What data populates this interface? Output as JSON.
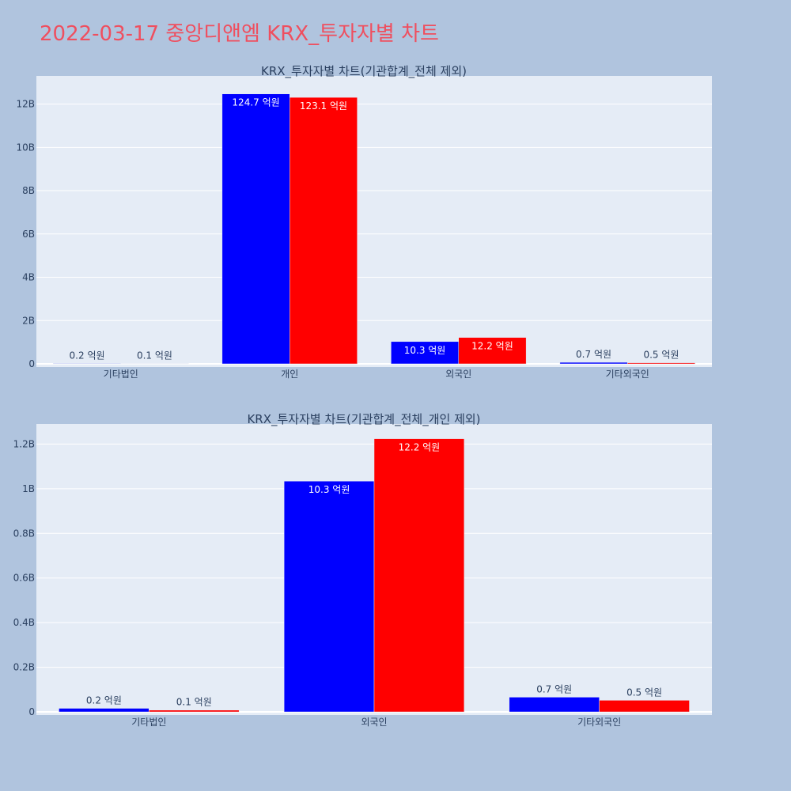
{
  "page": {
    "title": "2022-03-17 중앙디앤엠 KRX_투자자별 차트"
  },
  "colors": {
    "series_buy": "#0000ff",
    "series_sell": "#ff0000",
    "plot_bg": "#e5ecf6",
    "page_bg": "#b0c4de",
    "title": "#ef4f5f"
  },
  "chart_data": [
    {
      "type": "bar",
      "title": "KRX_투자자별 차트(기관합계_전체 제외)",
      "categories": [
        "기타법인",
        "개인",
        "외국인",
        "기타외국인"
      ],
      "series": [
        {
          "color": "#0000ff",
          "values": [
            20000000,
            12470000000,
            1030000000,
            70000000
          ],
          "labels": [
            "0.2 억원",
            "124.7 억원",
            "10.3 억원",
            "0.7 억원"
          ]
        },
        {
          "color": "#ff0000",
          "values": [
            10000000,
            12310000000,
            1220000000,
            50000000
          ],
          "labels": [
            "0.1 억원",
            "123.1 억원",
            "12.2 억원",
            "0.5 억원"
          ]
        }
      ],
      "ylim": [
        0,
        13300000000
      ],
      "yticks": [
        0,
        2000000000,
        4000000000,
        6000000000,
        8000000000,
        10000000000,
        12000000000
      ],
      "ytick_labels": [
        "0",
        "2B",
        "4B",
        "6B",
        "8B",
        "10B",
        "12B"
      ],
      "grid": true
    },
    {
      "type": "bar",
      "title": "KRX_투자자별 차트(기관합계_전체_개인 제외)",
      "categories": [
        "기타법인",
        "외국인",
        "기타외국인"
      ],
      "series": [
        {
          "color": "#0000ff",
          "values": [
            16000000,
            1034000000,
            66000000
          ],
          "labels": [
            "0.2 억원",
            "10.3 억원",
            "0.7 억원"
          ]
        },
        {
          "color": "#ff0000",
          "values": [
            8000000,
            1224000000,
            52000000
          ],
          "labels": [
            "0.1 억원",
            "12.2 억원",
            "0.5 억원"
          ]
        }
      ],
      "ylim": [
        0,
        1290000000
      ],
      "yticks": [
        0,
        200000000,
        400000000,
        600000000,
        800000000,
        1000000000,
        1200000000
      ],
      "ytick_labels": [
        "0",
        "0.2B",
        "0.4B",
        "0.6B",
        "0.8B",
        "1B",
        "1.2B"
      ],
      "grid": true
    }
  ]
}
